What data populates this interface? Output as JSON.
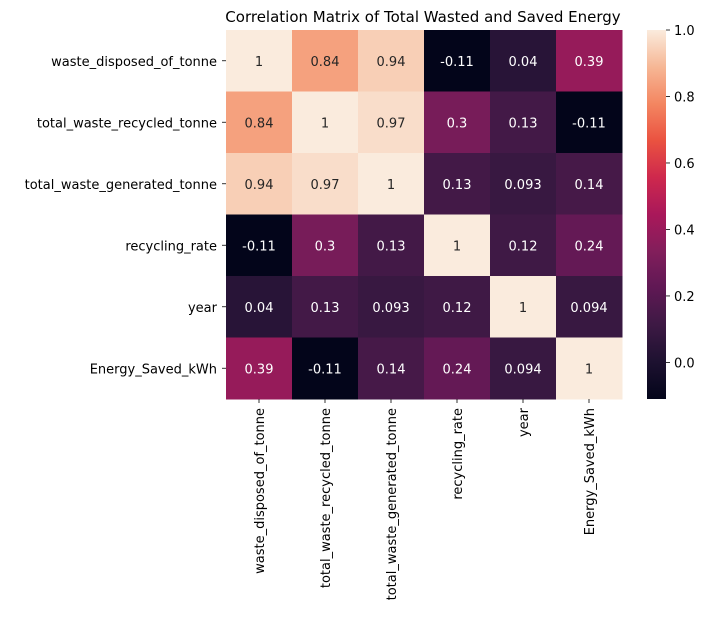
{
  "chart_data": {
    "type": "heatmap",
    "title": "Correlation Matrix of Total Wasted and Saved Energy",
    "rows": [
      "waste_disposed_of_tonne",
      "total_waste_recycled_tonne",
      "total_waste_generated_tonne",
      "recycling_rate",
      "year",
      "Energy_Saved_kWh"
    ],
    "columns": [
      "waste_disposed_of_tonne",
      "total_waste_recycled_tonne",
      "total_waste_generated_tonne",
      "recycling_rate",
      "year",
      "Energy_Saved_kWh"
    ],
    "values": [
      [
        1,
        0.84,
        0.94,
        -0.11,
        0.04,
        0.39
      ],
      [
        0.84,
        1,
        0.97,
        0.3,
        0.13,
        -0.11
      ],
      [
        0.94,
        0.97,
        1,
        0.13,
        0.093,
        0.14
      ],
      [
        -0.11,
        0.3,
        0.13,
        1,
        0.12,
        0.24
      ],
      [
        0.04,
        0.13,
        0.093,
        0.12,
        1,
        0.094
      ],
      [
        0.39,
        -0.11,
        0.14,
        0.24,
        0.094,
        1
      ]
    ],
    "labels": [
      [
        "1",
        "0.84",
        "0.94",
        "-0.11",
        "0.04",
        "0.39"
      ],
      [
        "0.84",
        "1",
        "0.97",
        "0.3",
        "0.13",
        "-0.11"
      ],
      [
        "0.94",
        "0.97",
        "1",
        "0.13",
        "0.093",
        "0.14"
      ],
      [
        "-0.11",
        "0.3",
        "0.13",
        "1",
        "0.12",
        "0.24"
      ],
      [
        "0.04",
        "0.13",
        "0.093",
        "0.12",
        "1",
        "0.094"
      ],
      [
        "0.39",
        "-0.11",
        "0.14",
        "0.24",
        "0.094",
        "1"
      ]
    ],
    "colorscale": "rocket",
    "vmin": -0.11,
    "vmax": 1,
    "colorbar_ticks": [
      "1.0",
      "0.8",
      "0.6",
      "0.4",
      "0.2",
      "0.0"
    ],
    "colorbar_tick_values": [
      1.0,
      0.8,
      0.6,
      0.4,
      0.2,
      0.0
    ]
  }
}
